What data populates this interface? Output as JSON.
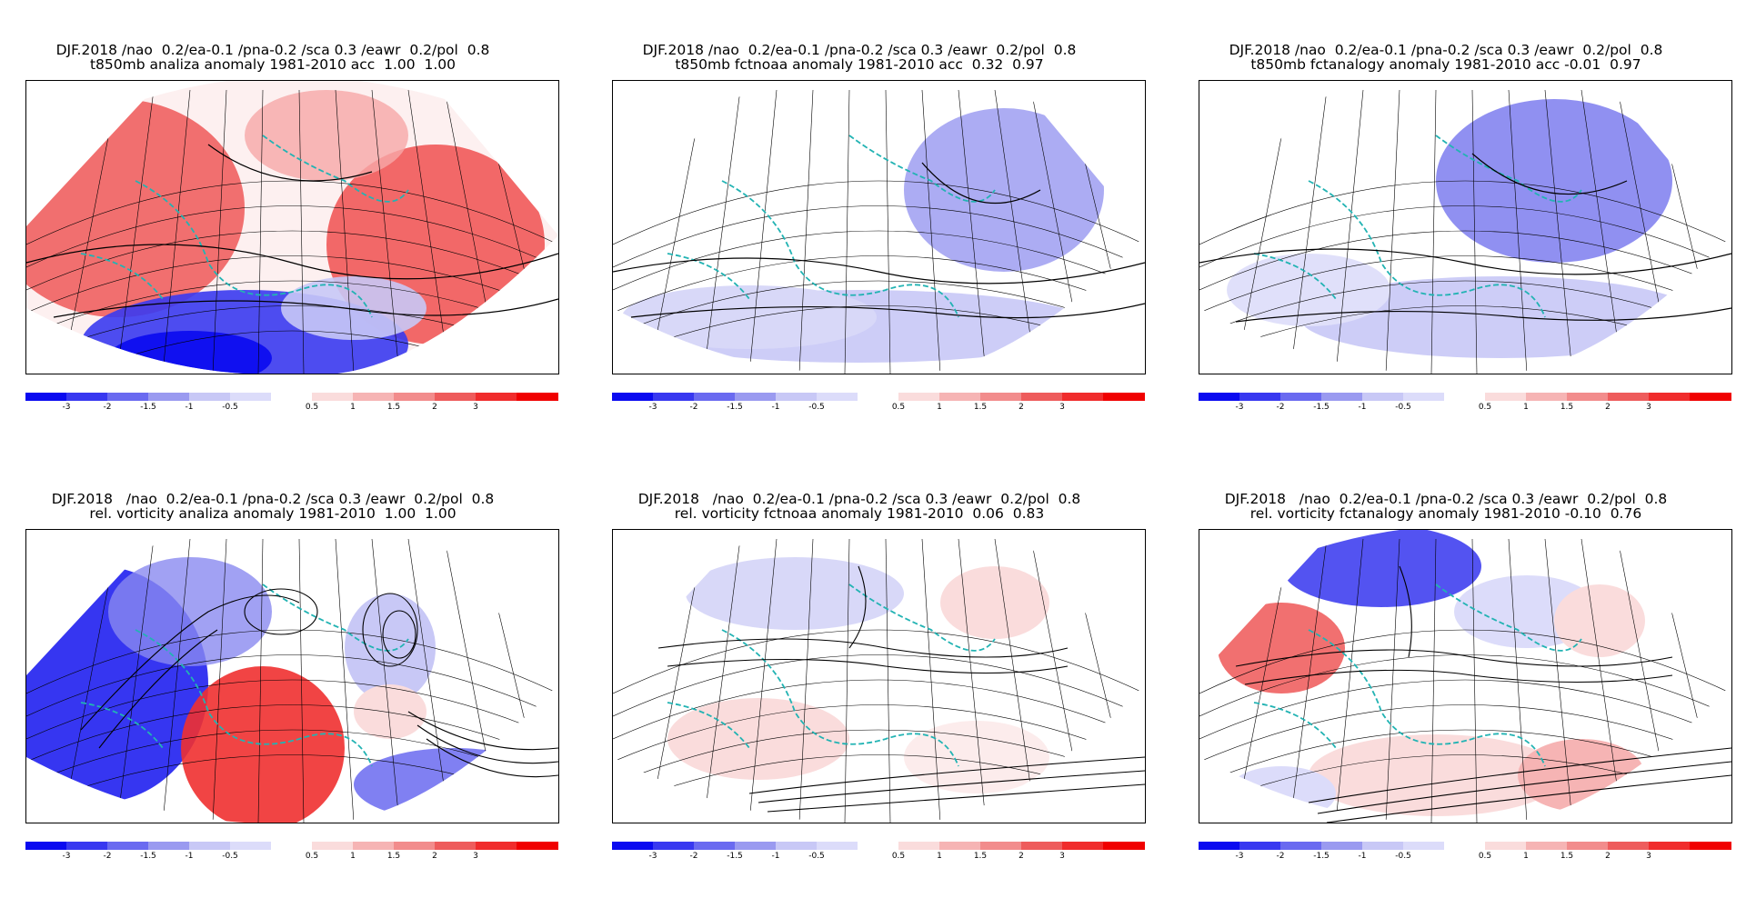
{
  "panels": [
    {
      "line1": "DJF.2018 /nao  0.2/ea-0.1 /pna-0.2 /sca 0.3 /eawr  0.2/pol  0.8",
      "line2": "t850mb analiza anomaly 1981-2010 acc  1.00  1.00"
    },
    {
      "line1": "DJF.2018 /nao  0.2/ea-0.1 /pna-0.2 /sca 0.3 /eawr  0.2/pol  0.8",
      "line2": "t850mb fctnoaa anomaly 1981-2010 acc  0.32  0.97"
    },
    {
      "line1": "DJF.2018 /nao  0.2/ea-0.1 /pna-0.2 /sca 0.3 /eawr  0.2/pol  0.8",
      "line2": "t850mb fctanalogy anomaly 1981-2010 acc -0.01  0.97"
    },
    {
      "line1": "DJF.2018   /nao  0.2/ea-0.1 /pna-0.2 /sca 0.3 /eawr  0.2/pol  0.8",
      "line2": "rel. vorticity analiza anomaly 1981-2010  1.00  1.00"
    },
    {
      "line1": "DJF.2018   /nao  0.2/ea-0.1 /pna-0.2 /sca 0.3 /eawr  0.2/pol  0.8",
      "line2": "rel. vorticity fctnoaa anomaly 1981-2010  0.06  0.83"
    },
    {
      "line1": "DJF.2018   /nao  0.2/ea-0.1 /pna-0.2 /sca 0.3 /eawr  0.2/pol  0.8",
      "line2": "rel. vorticity fctanalogy anomaly 1981-2010 -0.10  0.76"
    }
  ],
  "colorbar": {
    "labels": [
      "-3",
      "-2",
      "-1.5",
      "-1",
      "-0.5",
      "0.5",
      "1",
      "1.5",
      "2",
      "3"
    ],
    "colors": [
      "#0a0af0",
      "#3838f0",
      "#6a6af0",
      "#9a9af0",
      "#c8c8f6",
      "#dcdcfa",
      "#ffffff",
      "#fadcdc",
      "#f6b4b4",
      "#f28c8c",
      "#ee5c5c",
      "#f02c2c",
      "#f00000"
    ]
  },
  "colors": {
    "coast": "#22b3b3",
    "grid": "#000000",
    "contour": "#000000"
  }
}
